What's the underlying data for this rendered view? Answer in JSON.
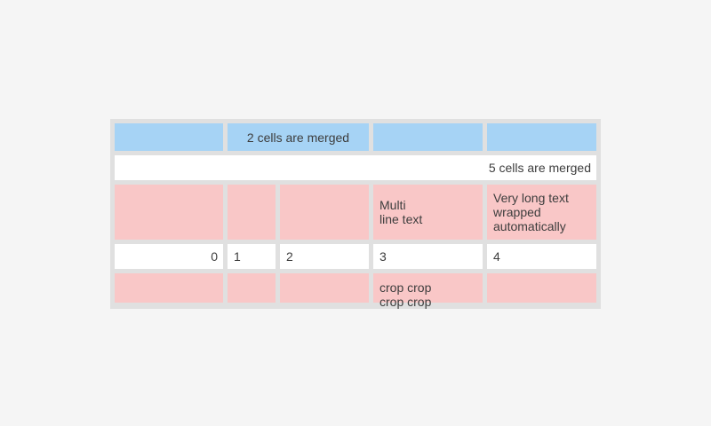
{
  "page": {
    "background": "#f5f5f5"
  },
  "colors": {
    "header_blue": "#a6d3f5",
    "highlight_pink": "#f9c7c7",
    "cell_white": "#ffffff",
    "table_border_gray": "#e0e0e0",
    "text": "#3d3d3d"
  },
  "table": {
    "row1": {
      "merged_label": "2 cells are merged"
    },
    "row2": {
      "merged_label": "5 cells are merged"
    },
    "row3": {
      "col4": "Multi\nline text",
      "col5": "Very long text wrapped automatically"
    },
    "row4": {
      "col1": "0",
      "col2": "1",
      "col3": "2",
      "col4": "3",
      "col5": "4"
    },
    "row5": {
      "col4": "crop crop\ncrop crop"
    }
  }
}
